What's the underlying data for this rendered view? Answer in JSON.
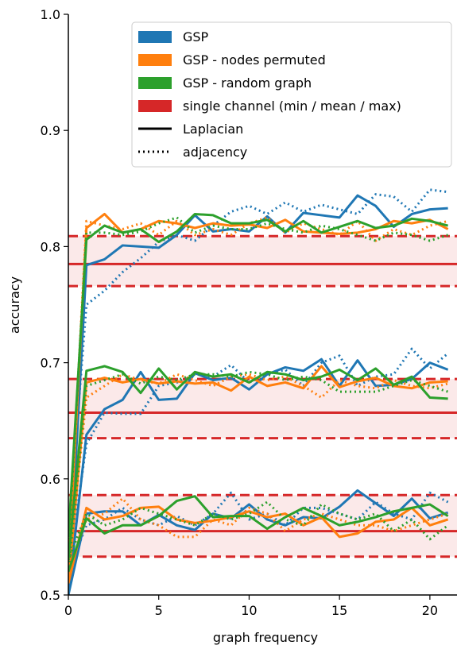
{
  "chart_data": {
    "type": "line",
    "xlabel": "graph frequency",
    "ylabel": "accuracy",
    "x": [
      0,
      1,
      2,
      3,
      4,
      5,
      6,
      7,
      8,
      9,
      10,
      11,
      12,
      13,
      14,
      15,
      16,
      17,
      18,
      19,
      20,
      21
    ],
    "xlim": [
      0,
      21.5
    ],
    "xticks": [
      0,
      5,
      10,
      15,
      20
    ],
    "ylim": [
      0.5,
      1
    ],
    "yticks": [
      0.5,
      0.6,
      0.7,
      0.8,
      0.9,
      {
        "value": 1,
        "label": "1.0"
      }
    ],
    "legend": "upper right",
    "styles": [
      {
        "name": "Laplacian",
        "dash": "solid"
      },
      {
        "name": "adjacency",
        "dash": "dotted"
      }
    ],
    "series": [
      {
        "name": "GSP",
        "color": "#1f77b4",
        "values": [
          [
            [
              0.5,
              0.57,
              0.572,
              0.572,
              0.56,
              0.569,
              0.56,
              0.556,
              0.57,
              0.566,
              0.578,
              0.565,
              0.56,
              0.567,
              0.566,
              0.576,
              0.59,
              0.579,
              0.568,
              0.583,
              0.566,
              0.571
            ],
            [
              0.5,
              0.638,
              0.66,
              0.668,
              0.692,
              0.668,
              0.669,
              0.691,
              0.685,
              0.687,
              0.677,
              0.69,
              0.696,
              0.693,
              0.703,
              0.68,
              0.702,
              0.68,
              0.681,
              0.686,
              0.7,
              0.694
            ],
            [
              0.5,
              0.784,
              0.789,
              0.801,
              0.8,
              0.799,
              0.81,
              0.827,
              0.813,
              0.815,
              0.813,
              0.826,
              0.812,
              0.829,
              0.827,
              0.825,
              0.844,
              0.835,
              0.817,
              0.828,
              0.832,
              0.833
            ]
          ],
          [
            [
              0.52,
              0.56,
              0.565,
              0.575,
              0.565,
              0.56,
              0.568,
              0.56,
              0.57,
              0.588,
              0.565,
              0.57,
              0.56,
              0.575,
              0.575,
              0.57,
              0.565,
              0.58,
              0.57,
              0.565,
              0.588,
              0.58
            ],
            [
              0.52,
              0.63,
              0.657,
              0.656,
              0.656,
              0.68,
              0.683,
              0.69,
              0.688,
              0.698,
              0.683,
              0.69,
              0.694,
              0.68,
              0.7,
              0.706,
              0.68,
              0.688,
              0.69,
              0.712,
              0.695,
              0.708
            ],
            [
              0.55,
              0.75,
              0.762,
              0.778,
              0.79,
              0.804,
              0.81,
              0.805,
              0.818,
              0.83,
              0.835,
              0.828,
              0.838,
              0.83,
              0.836,
              0.832,
              0.828,
              0.845,
              0.843,
              0.83,
              0.849,
              0.847
            ]
          ]
        ]
      },
      {
        "name": "GSP - nodes permuted",
        "color": "#ff7f0e",
        "values": [
          [
            [
              0.51,
              0.575,
              0.565,
              0.568,
              0.575,
              0.576,
              0.565,
              0.562,
              0.564,
              0.567,
              0.572,
              0.567,
              0.57,
              0.56,
              0.567,
              0.55,
              0.553,
              0.563,
              0.565,
              0.575,
              0.56,
              0.565
            ],
            [
              0.51,
              0.683,
              0.687,
              0.683,
              0.686,
              0.682,
              0.684,
              0.682,
              0.683,
              0.676,
              0.688,
              0.68,
              0.683,
              0.678,
              0.697,
              0.679,
              0.684,
              0.687,
              0.68,
              0.678,
              0.683,
              0.684
            ],
            [
              0.52,
              0.816,
              0.828,
              0.812,
              0.815,
              0.822,
              0.82,
              0.816,
              0.82,
              0.818,
              0.819,
              0.816,
              0.823,
              0.813,
              0.812,
              0.811,
              0.812,
              0.815,
              0.822,
              0.82,
              0.823,
              0.815
            ]
          ],
          [
            [
              0.52,
              0.565,
              0.57,
              0.583,
              0.565,
              0.56,
              0.55,
              0.55,
              0.565,
              0.56,
              0.575,
              0.57,
              0.555,
              0.565,
              0.57,
              0.565,
              0.56,
              0.56,
              0.555,
              0.56,
              0.565,
              0.57
            ],
            [
              0.52,
              0.67,
              0.68,
              0.69,
              0.685,
              0.682,
              0.69,
              0.685,
              0.68,
              0.688,
              0.69,
              0.685,
              0.688,
              0.68,
              0.67,
              0.685,
              0.68,
              0.678,
              0.685,
              0.68,
              0.678,
              0.682
            ],
            [
              0.53,
              0.822,
              0.818,
              0.815,
              0.82,
              0.81,
              0.822,
              0.81,
              0.815,
              0.81,
              0.82,
              0.825,
              0.812,
              0.82,
              0.815,
              0.81,
              0.822,
              0.805,
              0.815,
              0.81,
              0.818,
              0.822
            ]
          ]
        ]
      },
      {
        "name": "GSP - random graph",
        "color": "#2ca02c",
        "values": [
          [
            [
              0.52,
              0.566,
              0.553,
              0.56,
              0.56,
              0.568,
              0.581,
              0.585,
              0.567,
              0.568,
              0.568,
              0.557,
              0.567,
              0.575,
              0.568,
              0.56,
              0.563,
              0.567,
              0.572,
              0.575,
              0.578,
              0.568
            ],
            [
              0.53,
              0.693,
              0.697,
              0.692,
              0.674,
              0.695,
              0.677,
              0.692,
              0.688,
              0.69,
              0.683,
              0.692,
              0.69,
              0.685,
              0.688,
              0.694,
              0.685,
              0.695,
              0.681,
              0.688,
              0.67,
              0.669
            ],
            [
              0.55,
              0.806,
              0.818,
              0.812,
              0.815,
              0.804,
              0.813,
              0.828,
              0.827,
              0.82,
              0.82,
              0.823,
              0.813,
              0.822,
              0.812,
              0.817,
              0.822,
              0.816,
              0.818,
              0.824,
              0.822,
              0.818
            ]
          ],
          [
            [
              0.53,
              0.57,
              0.56,
              0.565,
              0.575,
              0.57,
              0.565,
              0.56,
              0.57,
              0.565,
              0.57,
              0.58,
              0.565,
              0.56,
              0.578,
              0.57,
              0.565,
              0.57,
              0.555,
              0.565,
              0.548,
              0.56
            ],
            [
              0.52,
              0.68,
              0.685,
              0.69,
              0.682,
              0.688,
              0.685,
              0.69,
              0.69,
              0.688,
              0.692,
              0.69,
              0.685,
              0.688,
              0.685,
              0.675,
              0.675,
              0.675,
              0.68,
              0.685,
              0.68,
              0.675
            ],
            [
              0.54,
              0.812,
              0.812,
              0.81,
              0.813,
              0.82,
              0.825,
              0.812,
              0.818,
              0.815,
              0.815,
              0.82,
              0.815,
              0.812,
              0.818,
              0.815,
              0.81,
              0.805,
              0.812,
              0.81,
              0.805,
              0.81
            ]
          ]
        ]
      }
    ],
    "reference": {
      "name": "single channel (min / mean / max)",
      "color": "#d62728",
      "levels": [
        [
          0.533,
          0.555,
          0.586
        ],
        [
          0.635,
          0.657,
          0.686
        ],
        [
          0.766,
          0.785,
          0.809
        ]
      ]
    }
  }
}
